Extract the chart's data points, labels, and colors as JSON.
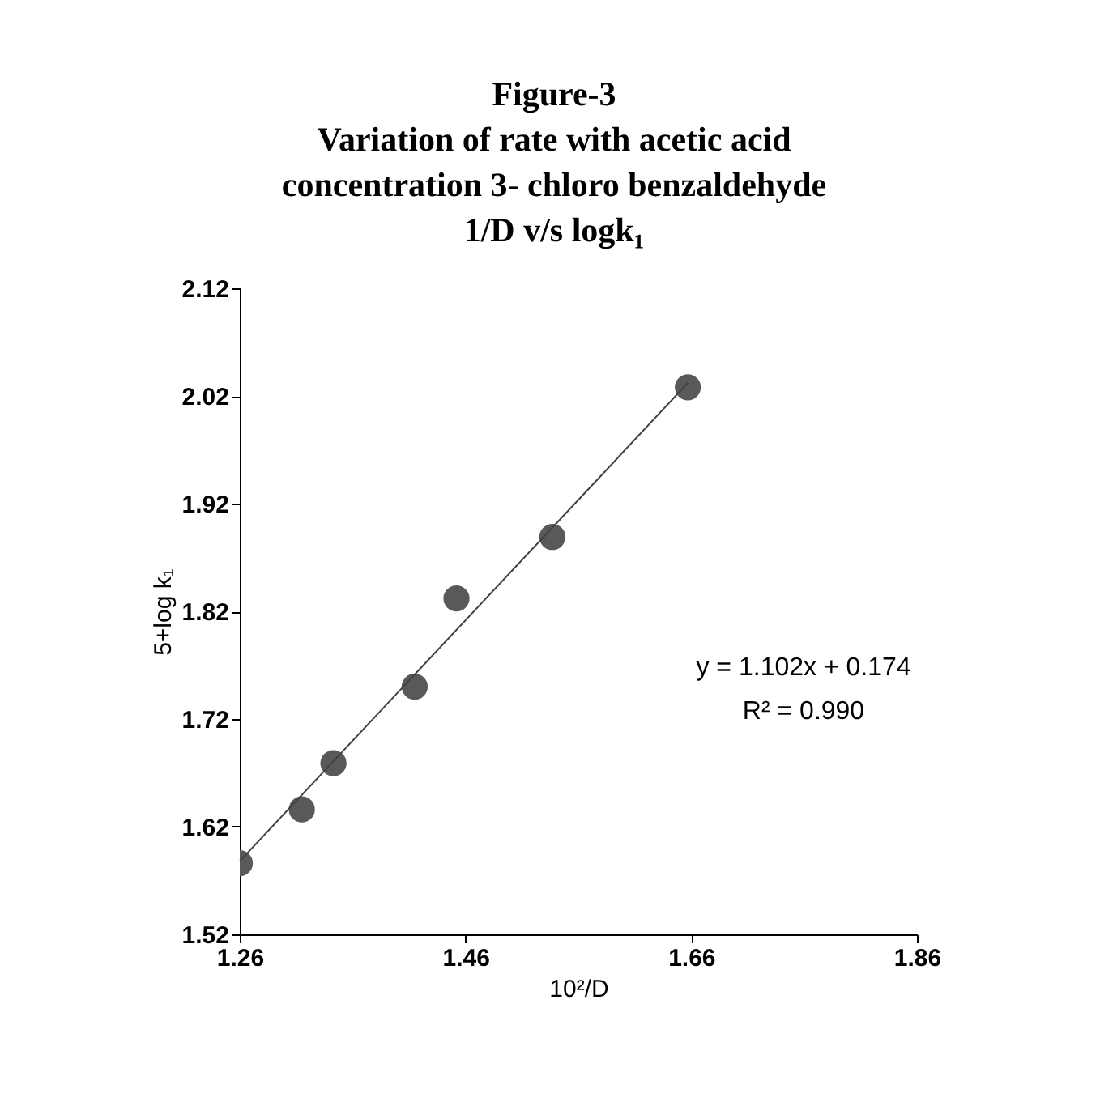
{
  "chart_data": {
    "type": "scatter",
    "title": [
      "Figure-3",
      "Variation of rate with acetic acid",
      "concentration   3- chloro benzaldehyde",
      "1/D v/s  logk₁"
    ],
    "xlabel": "10²/D",
    "ylabel": "5+log k₁",
    "xlim": [
      1.26,
      1.86
    ],
    "xticks": [
      1.26,
      1.46,
      1.66,
      1.86
    ],
    "ylim": [
      1.52,
      2.12
    ],
    "yticks": [
      1.52,
      1.62,
      1.72,
      1.82,
      1.92,
      2.02,
      2.12
    ],
    "series": [
      {
        "x": [
          1.26,
          1.315,
          1.343,
          1.415,
          1.452,
          1.537,
          1.657
        ],
        "values": [
          1.586,
          1.636,
          1.679,
          1.75,
          1.832,
          1.889,
          2.028
        ],
        "color": "#595959",
        "marker": "circle"
      },
      {
        "type": "line",
        "x": [
          1.26,
          1.657
        ],
        "values": [
          1.588,
          2.032
        ],
        "color": "#404040",
        "marker": "none"
      }
    ],
    "annotations": [
      "y = 1.102x + 0.174",
      "R² = 0.990"
    ],
    "grid": false
  }
}
